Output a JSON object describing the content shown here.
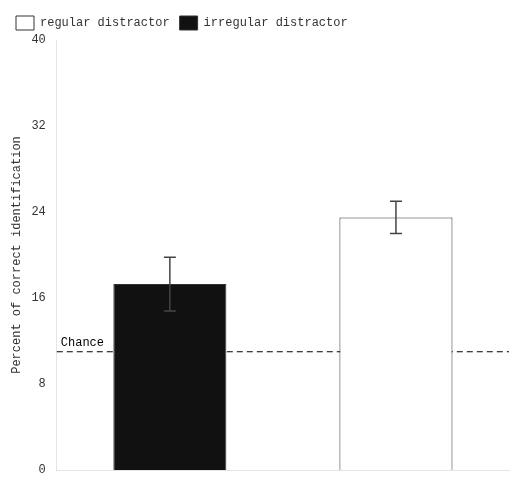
{
  "chart_data": {
    "type": "bar",
    "categories": [
      null,
      null
    ],
    "series": [
      {
        "name": "regular distractor",
        "color": "#ffffff",
        "values": [
          null,
          23.5
        ],
        "errors": [
          null,
          1.5
        ]
      },
      {
        "name": "irregular distractor",
        "color": "#111111",
        "values": [
          17.3,
          null
        ],
        "errors": [
          2.5,
          null
        ]
      }
    ],
    "ylabel": "Percent of correct identification",
    "ylim": [
      0,
      40
    ],
    "yticks": [
      0,
      8,
      16,
      24,
      32,
      40
    ],
    "annotations": [
      {
        "text": "Chance",
        "y": 11.0,
        "line_style": "dashed"
      }
    ],
    "grid": false,
    "legend": "upper left",
    "tick_labels": "y"
  }
}
